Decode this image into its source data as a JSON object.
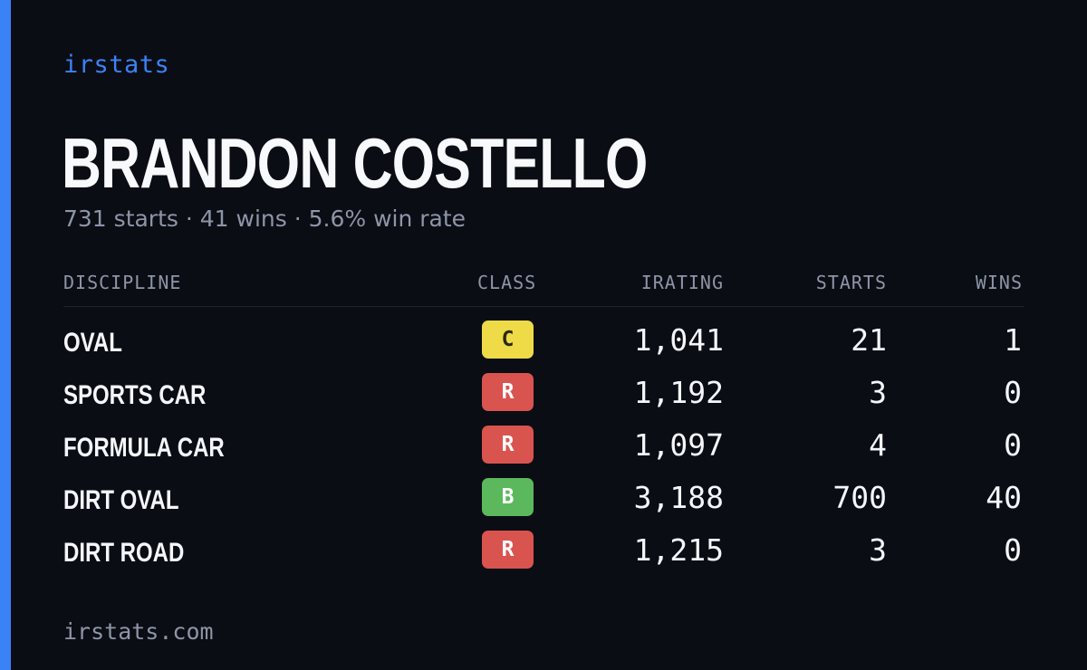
{
  "brand": "irstats",
  "player": {
    "name": "BRANDON COSTELLO",
    "summary": "731 starts · 41 wins · 5.6% win rate"
  },
  "table": {
    "headers": {
      "discipline": "DISCIPLINE",
      "class": "CLASS",
      "irating": "IRATING",
      "starts": "STARTS",
      "wins": "WINS"
    },
    "rows": [
      {
        "discipline": "OVAL",
        "class": "C",
        "class_bg": "#eedb47",
        "class_fg": "#2b2a14",
        "irating": "1,041",
        "starts": "21",
        "wins": "1"
      },
      {
        "discipline": "SPORTS CAR",
        "class": "R",
        "class_bg": "#d9534f",
        "class_fg": "#ffffff",
        "irating": "1,192",
        "starts": "3",
        "wins": "0"
      },
      {
        "discipline": "FORMULA CAR",
        "class": "R",
        "class_bg": "#d9534f",
        "class_fg": "#ffffff",
        "irating": "1,097",
        "starts": "4",
        "wins": "0"
      },
      {
        "discipline": "DIRT OVAL",
        "class": "B",
        "class_bg": "#5cb85c",
        "class_fg": "#ffffff",
        "irating": "3,188",
        "starts": "700",
        "wins": "40"
      },
      {
        "discipline": "DIRT ROAD",
        "class": "R",
        "class_bg": "#d9534f",
        "class_fg": "#ffffff",
        "irating": "1,215",
        "starts": "3",
        "wins": "0"
      }
    ]
  },
  "footer": "irstats.com",
  "colors": {
    "background": "#0b0d14",
    "accent": "#3b82f6",
    "muted": "#8d95a8",
    "text": "#f4f6fb"
  }
}
